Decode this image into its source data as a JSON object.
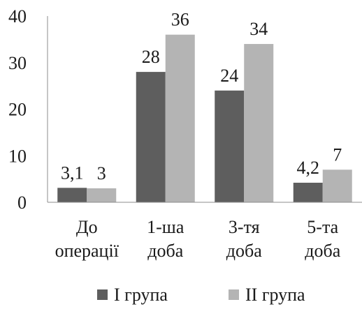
{
  "chart_data": {
    "type": "bar",
    "title": "",
    "xlabel": "",
    "ylabel": "",
    "ylim": [
      0,
      40
    ],
    "yticks": [
      0,
      10,
      20,
      30,
      40
    ],
    "grid": false,
    "legend_position": "bottom",
    "categories": [
      [
        "До",
        "операції"
      ],
      [
        "1-ша",
        "доба"
      ],
      [
        "3-тя",
        "доба"
      ],
      [
        "5-та",
        "доба"
      ]
    ],
    "series": [
      {
        "name": "I група",
        "color": "#5e5e5e",
        "values": [
          3.1,
          28,
          24,
          4.2
        ],
        "labels": [
          "3,1",
          "28",
          "24",
          "4,2"
        ]
      },
      {
        "name": "II група",
        "color": "#b4b4b4",
        "values": [
          3,
          36,
          34,
          7
        ],
        "labels": [
          "3",
          "36",
          "34",
          "7"
        ]
      }
    ]
  }
}
